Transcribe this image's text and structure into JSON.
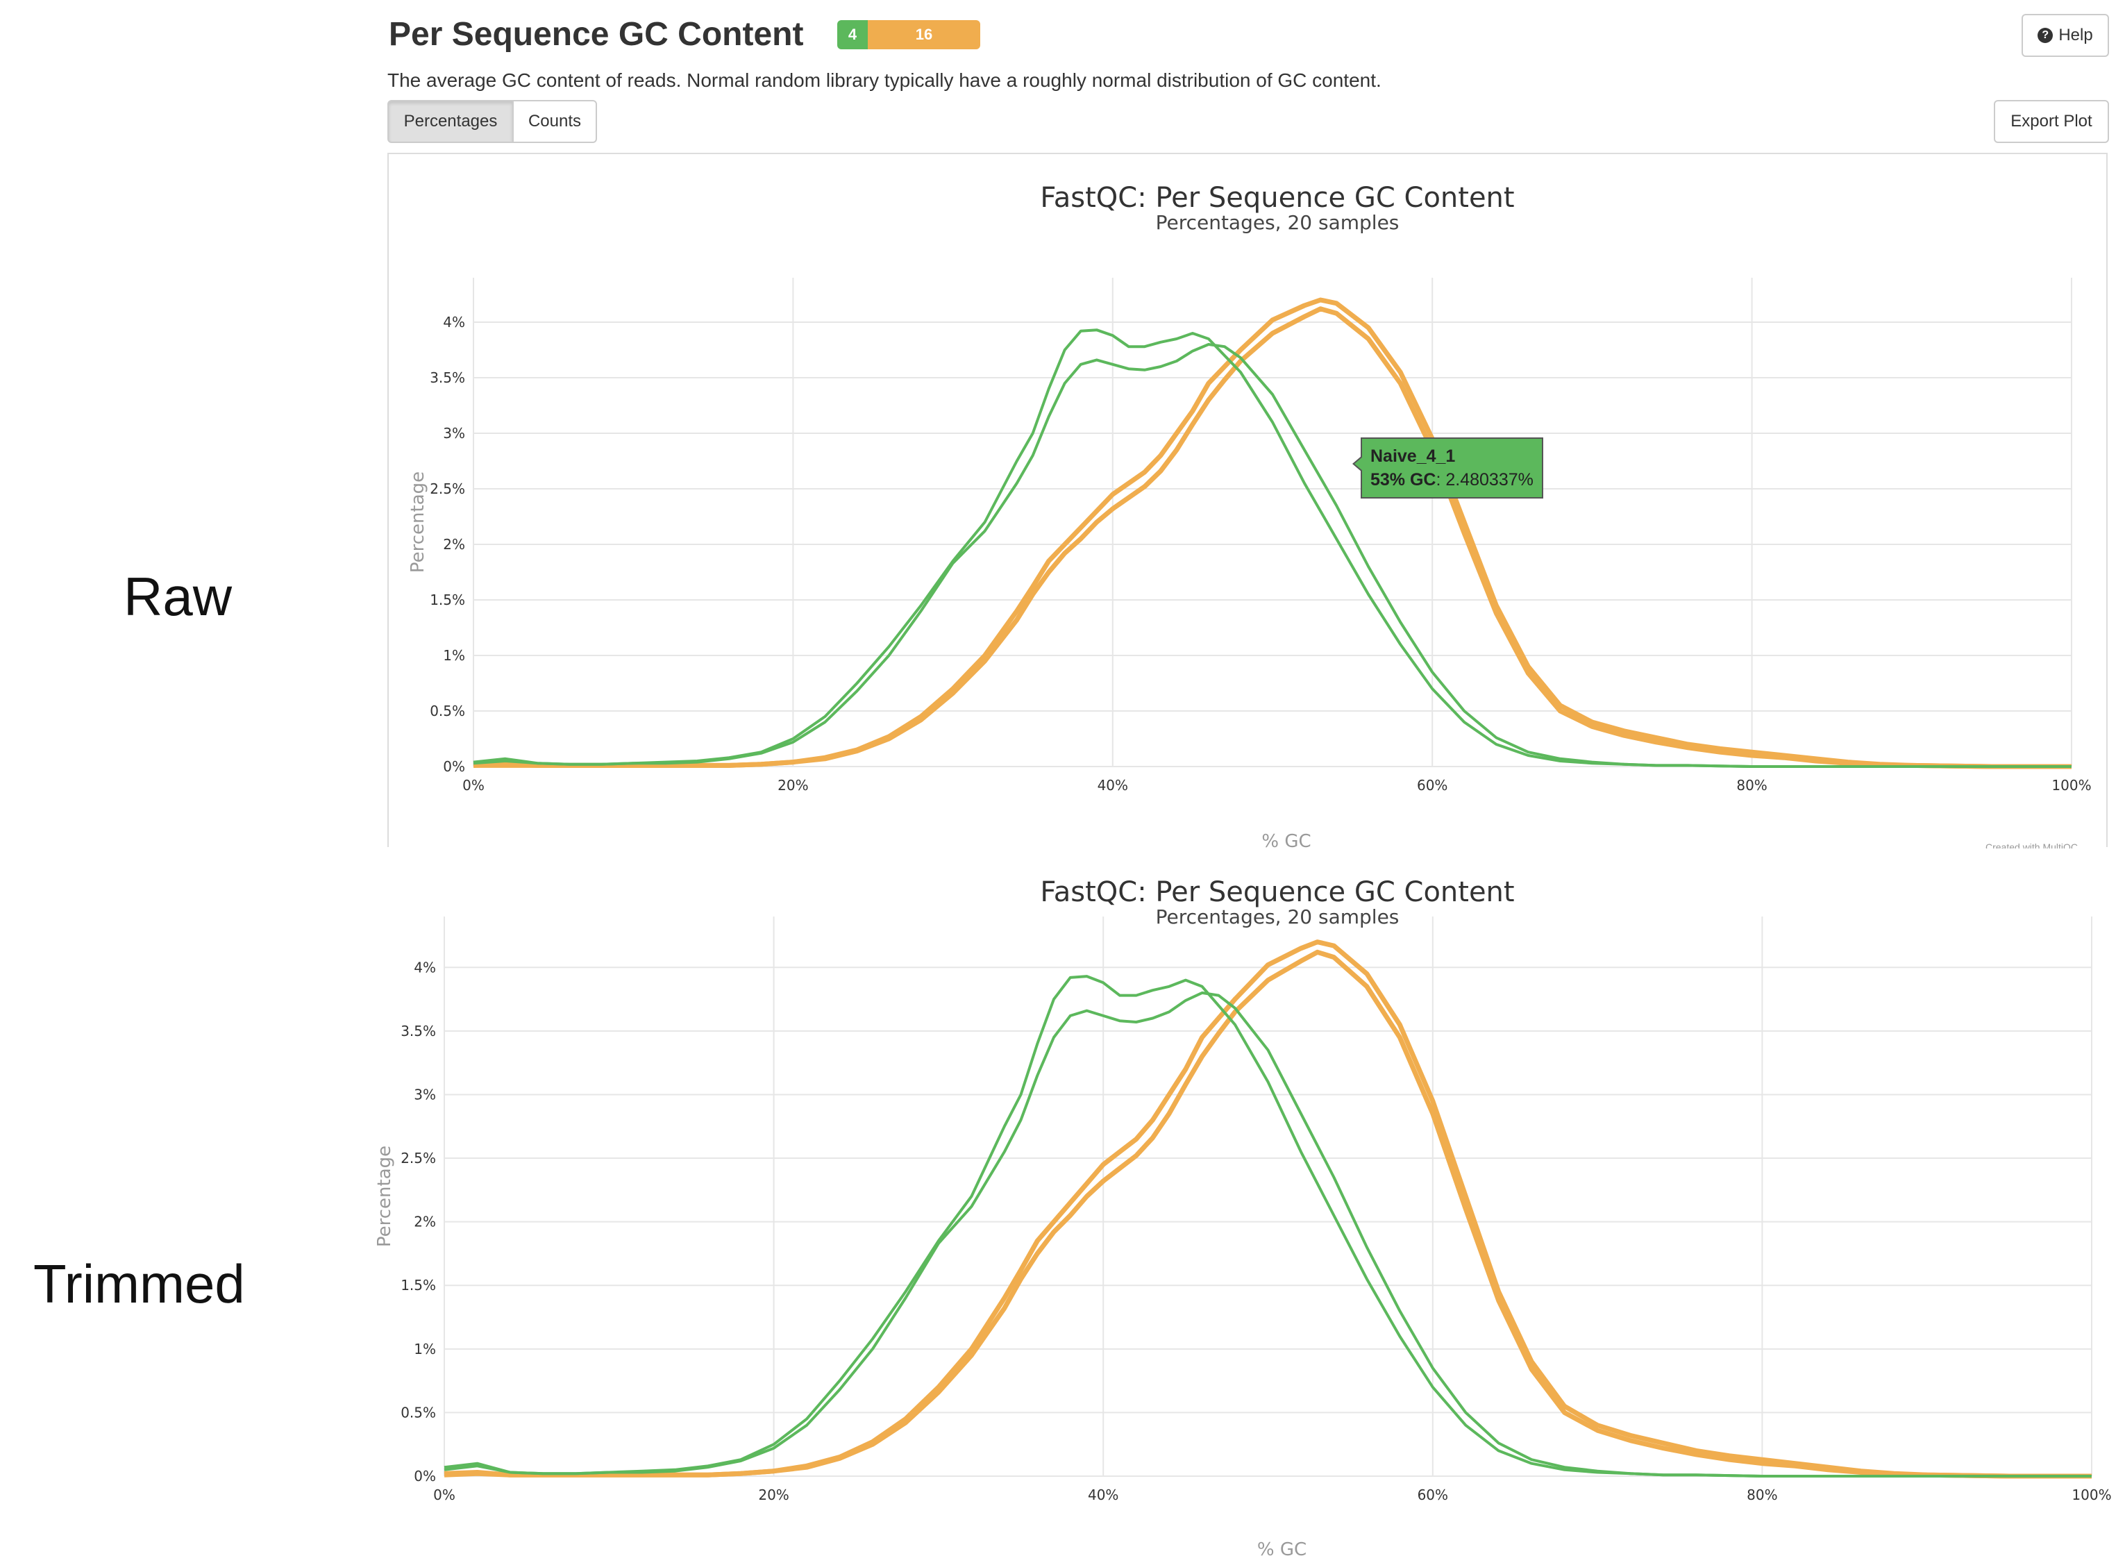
{
  "labels": {
    "raw": "Raw",
    "trimmed": "Trimmed"
  },
  "header": {
    "title": "Per Sequence GC Content",
    "badge_pass": "4",
    "badge_warn": "16",
    "help": "Help",
    "description": "The average GC content of reads. Normal random library typically have a roughly normal distribution of GC content."
  },
  "toolbar": {
    "tab_percentages": "Percentages",
    "tab_counts": "Counts",
    "export": "Export Plot"
  },
  "tooltip": {
    "sample": "Naive_4_1",
    "bold": "53% GC",
    "value": ": 2.480337%"
  },
  "credit": "Created with MultiQC",
  "colors": {
    "pass": "#5cb85c",
    "warn": "#f0ad4e",
    "grid": "#e6e6e6",
    "axis_title": "#999999"
  },
  "chart_data": [
    {
      "type": "line",
      "title": "FastQC: Per Sequence GC Content",
      "subtitle": "Percentages, 20 samples",
      "xlabel": "% GC",
      "ylabel": "Percentage",
      "xlim": [
        0,
        100
      ],
      "ylim": [
        0,
        4.4
      ],
      "x_ticks": [
        "0%",
        "20%",
        "40%",
        "60%",
        "80%",
        "100%"
      ],
      "y_ticks": [
        "0%",
        "0.5%",
        "1%",
        "1.5%",
        "2%",
        "2.5%",
        "3%",
        "3.5%",
        "4%"
      ],
      "x": [
        0,
        2,
        4,
        6,
        8,
        10,
        12,
        14,
        16,
        18,
        20,
        22,
        24,
        26,
        28,
        30,
        32,
        34,
        35,
        36,
        37,
        38,
        39,
        40,
        41,
        42,
        43,
        44,
        45,
        46,
        47,
        48,
        50,
        52,
        53,
        54,
        56,
        58,
        60,
        62,
        64,
        66,
        68,
        70,
        72,
        74,
        76,
        78,
        80,
        82,
        84,
        86,
        88,
        90,
        95,
        100
      ],
      "series": [
        {
          "group": "pass",
          "values": [
            0.04,
            0.07,
            0.03,
            0.02,
            0.02,
            0.03,
            0.04,
            0.05,
            0.08,
            0.13,
            0.25,
            0.45,
            0.75,
            1.08,
            1.45,
            1.85,
            2.2,
            2.75,
            3.0,
            3.4,
            3.75,
            3.92,
            3.93,
            3.88,
            3.78,
            3.78,
            3.82,
            3.85,
            3.9,
            3.85,
            3.7,
            3.55,
            3.1,
            2.55,
            2.3,
            2.05,
            1.55,
            1.1,
            0.7,
            0.4,
            0.2,
            0.1,
            0.05,
            0.03,
            0.02,
            0.01,
            0.01,
            0.005,
            0.0,
            0.0,
            0.0,
            0.0,
            0.0,
            0.0,
            0.0,
            0.0
          ]
        },
        {
          "group": "pass",
          "values": [
            0.03,
            0.05,
            0.03,
            0.02,
            0.02,
            0.03,
            0.03,
            0.04,
            0.07,
            0.12,
            0.22,
            0.4,
            0.68,
            1.0,
            1.4,
            1.83,
            2.12,
            2.55,
            2.8,
            3.15,
            3.45,
            3.62,
            3.66,
            3.62,
            3.58,
            3.57,
            3.6,
            3.65,
            3.74,
            3.8,
            3.78,
            3.68,
            3.35,
            2.85,
            2.6,
            2.35,
            1.8,
            1.3,
            0.85,
            0.5,
            0.26,
            0.13,
            0.07,
            0.04,
            0.02,
            0.01,
            0.01,
            0.005,
            0.0,
            0.0,
            0.0,
            0.0,
            0.0,
            0.0,
            0.0,
            0.0
          ]
        },
        {
          "group": "warn",
          "values": [
            0.01,
            0.02,
            0.01,
            0.01,
            0.01,
            0.01,
            0.01,
            0.01,
            0.01,
            0.02,
            0.04,
            0.08,
            0.15,
            0.27,
            0.45,
            0.7,
            1.0,
            1.4,
            1.62,
            1.85,
            2.0,
            2.15,
            2.3,
            2.45,
            2.55,
            2.65,
            2.8,
            3.0,
            3.2,
            3.45,
            3.6,
            3.75,
            4.02,
            4.15,
            4.2,
            4.17,
            3.95,
            3.55,
            2.95,
            2.2,
            1.45,
            0.9,
            0.55,
            0.4,
            0.32,
            0.26,
            0.2,
            0.16,
            0.13,
            0.1,
            0.07,
            0.04,
            0.02,
            0.01,
            0.0,
            0.0
          ]
        },
        {
          "group": "warn",
          "values": [
            0.01,
            0.01,
            0.01,
            0.01,
            0.01,
            0.01,
            0.01,
            0.01,
            0.01,
            0.02,
            0.04,
            0.07,
            0.14,
            0.25,
            0.42,
            0.66,
            0.95,
            1.32,
            1.55,
            1.75,
            1.92,
            2.05,
            2.2,
            2.32,
            2.42,
            2.52,
            2.66,
            2.85,
            3.08,
            3.3,
            3.48,
            3.65,
            3.9,
            4.05,
            4.12,
            4.08,
            3.85,
            3.45,
            2.85,
            2.1,
            1.38,
            0.84,
            0.5,
            0.36,
            0.28,
            0.22,
            0.17,
            0.13,
            0.1,
            0.08,
            0.05,
            0.03,
            0.01,
            0.01,
            0.0,
            0.0
          ]
        }
      ]
    },
    {
      "type": "line",
      "title": "FastQC: Per Sequence GC Content",
      "subtitle": "Percentages, 20 samples",
      "xlabel": "% GC",
      "ylabel": "Percentage",
      "xlim": [
        0,
        100
      ],
      "ylim": [
        0,
        4.4
      ],
      "x_ticks": [
        "0%",
        "20%",
        "40%",
        "60%",
        "80%",
        "100%"
      ],
      "y_ticks": [
        "0%",
        "0.5%",
        "1%",
        "1.5%",
        "2%",
        "2.5%",
        "3%",
        "3.5%",
        "4%"
      ],
      "x": [
        0,
        2,
        4,
        6,
        8,
        10,
        12,
        14,
        16,
        18,
        20,
        22,
        24,
        26,
        28,
        30,
        32,
        34,
        35,
        36,
        37,
        38,
        39,
        40,
        41,
        42,
        43,
        44,
        45,
        46,
        47,
        48,
        50,
        52,
        53,
        54,
        56,
        58,
        60,
        62,
        64,
        66,
        68,
        70,
        72,
        74,
        76,
        78,
        80,
        82,
        84,
        86,
        88,
        90,
        95,
        100
      ],
      "series": [
        {
          "group": "pass",
          "values": [
            0.07,
            0.1,
            0.03,
            0.02,
            0.02,
            0.03,
            0.04,
            0.05,
            0.08,
            0.13,
            0.25,
            0.45,
            0.75,
            1.08,
            1.45,
            1.85,
            2.2,
            2.75,
            3.0,
            3.4,
            3.75,
            3.92,
            3.93,
            3.88,
            3.78,
            3.78,
            3.82,
            3.85,
            3.9,
            3.85,
            3.7,
            3.55,
            3.1,
            2.55,
            2.3,
            2.05,
            1.55,
            1.1,
            0.7,
            0.4,
            0.2,
            0.1,
            0.05,
            0.03,
            0.02,
            0.01,
            0.01,
            0.005,
            0.0,
            0.0,
            0.0,
            0.0,
            0.0,
            0.0,
            0.0,
            0.0
          ]
        },
        {
          "group": "pass",
          "values": [
            0.05,
            0.08,
            0.03,
            0.02,
            0.02,
            0.03,
            0.03,
            0.04,
            0.07,
            0.12,
            0.22,
            0.4,
            0.68,
            1.0,
            1.4,
            1.83,
            2.12,
            2.55,
            2.8,
            3.15,
            3.45,
            3.62,
            3.66,
            3.62,
            3.58,
            3.57,
            3.6,
            3.65,
            3.74,
            3.8,
            3.78,
            3.68,
            3.35,
            2.85,
            2.6,
            2.35,
            1.8,
            1.3,
            0.85,
            0.5,
            0.26,
            0.13,
            0.07,
            0.04,
            0.02,
            0.01,
            0.01,
            0.005,
            0.0,
            0.0,
            0.0,
            0.0,
            0.0,
            0.0,
            0.0,
            0.0
          ]
        },
        {
          "group": "warn",
          "values": [
            0.02,
            0.03,
            0.01,
            0.01,
            0.01,
            0.01,
            0.01,
            0.01,
            0.01,
            0.02,
            0.04,
            0.08,
            0.15,
            0.27,
            0.45,
            0.7,
            1.0,
            1.4,
            1.62,
            1.85,
            2.0,
            2.15,
            2.3,
            2.45,
            2.55,
            2.65,
            2.8,
            3.0,
            3.2,
            3.45,
            3.6,
            3.75,
            4.02,
            4.15,
            4.2,
            4.17,
            3.95,
            3.55,
            2.95,
            2.2,
            1.45,
            0.9,
            0.55,
            0.4,
            0.32,
            0.26,
            0.2,
            0.16,
            0.13,
            0.1,
            0.07,
            0.04,
            0.02,
            0.01,
            0.0,
            0.0
          ]
        },
        {
          "group": "warn",
          "values": [
            0.01,
            0.02,
            0.01,
            0.01,
            0.01,
            0.01,
            0.01,
            0.01,
            0.01,
            0.02,
            0.04,
            0.07,
            0.14,
            0.25,
            0.42,
            0.66,
            0.95,
            1.32,
            1.55,
            1.75,
            1.92,
            2.05,
            2.2,
            2.32,
            2.42,
            2.52,
            2.66,
            2.85,
            3.08,
            3.3,
            3.48,
            3.65,
            3.9,
            4.05,
            4.12,
            4.08,
            3.85,
            3.45,
            2.85,
            2.1,
            1.38,
            0.84,
            0.5,
            0.36,
            0.28,
            0.22,
            0.17,
            0.13,
            0.1,
            0.08,
            0.05,
            0.03,
            0.01,
            0.01,
            0.0,
            0.0
          ]
        }
      ]
    }
  ]
}
